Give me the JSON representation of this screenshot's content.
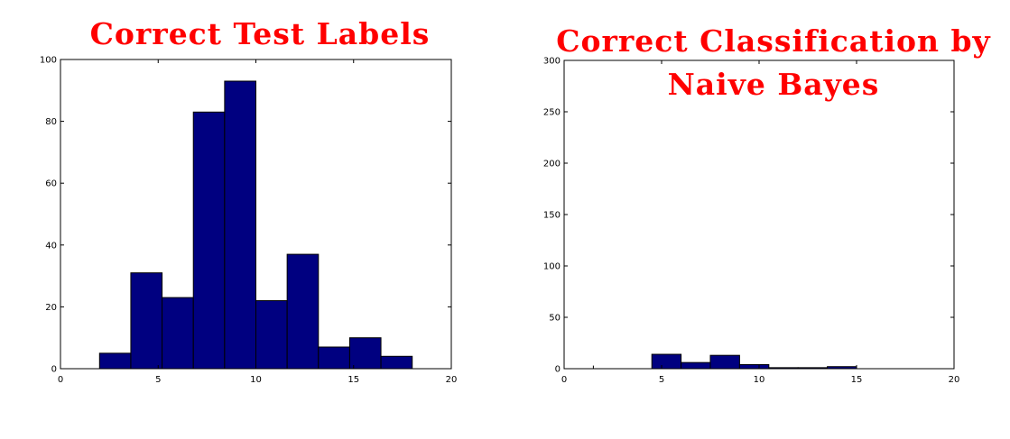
{
  "chart_data": [
    {
      "type": "bar",
      "title": "Correct Test Labels",
      "xlim": [
        0,
        20
      ],
      "ylim": [
        0,
        100
      ],
      "xticks": [
        0,
        5,
        10,
        15,
        20
      ],
      "yticks": [
        0,
        20,
        40,
        60,
        80,
        100
      ],
      "bars": [
        {
          "x0": 2.0,
          "x1": 3.6,
          "value": 5
        },
        {
          "x0": 3.6,
          "x1": 5.2,
          "value": 31
        },
        {
          "x0": 5.2,
          "x1": 6.8,
          "value": 23
        },
        {
          "x0": 6.8,
          "x1": 8.4,
          "value": 83
        },
        {
          "x0": 8.4,
          "x1": 10.0,
          "value": 93
        },
        {
          "x0": 10.0,
          "x1": 11.6,
          "value": 22
        },
        {
          "x0": 11.6,
          "x1": 13.2,
          "value": 37
        },
        {
          "x0": 13.2,
          "x1": 14.8,
          "value": 7
        },
        {
          "x0": 14.8,
          "x1": 16.4,
          "value": 10
        },
        {
          "x0": 16.4,
          "x1": 18.0,
          "value": 4
        }
      ],
      "bar_color": "#000080",
      "grid": false
    },
    {
      "type": "bar",
      "title": "Correct Classification by\nNaive Bayes",
      "xlim": [
        0,
        20
      ],
      "ylim": [
        0,
        300
      ],
      "xticks": [
        0,
        5,
        10,
        15,
        20
      ],
      "yticks": [
        0,
        50,
        100,
        150,
        200,
        250,
        300
      ],
      "bars": [
        {
          "x0": 1.5,
          "x1": 1.5,
          "value": 3
        },
        {
          "x0": 4.5,
          "x1": 6.0,
          "value": 14
        },
        {
          "x0": 6.0,
          "x1": 7.5,
          "value": 6
        },
        {
          "x0": 7.5,
          "x1": 9.0,
          "value": 13
        },
        {
          "x0": 9.0,
          "x1": 10.5,
          "value": 4
        },
        {
          "x0": 10.5,
          "x1": 12.0,
          "value": 1
        },
        {
          "x0": 12.0,
          "x1": 13.5,
          "value": 1
        },
        {
          "x0": 13.5,
          "x1": 15.0,
          "value": 2
        }
      ],
      "bar_color": "#000080",
      "grid": false
    }
  ]
}
